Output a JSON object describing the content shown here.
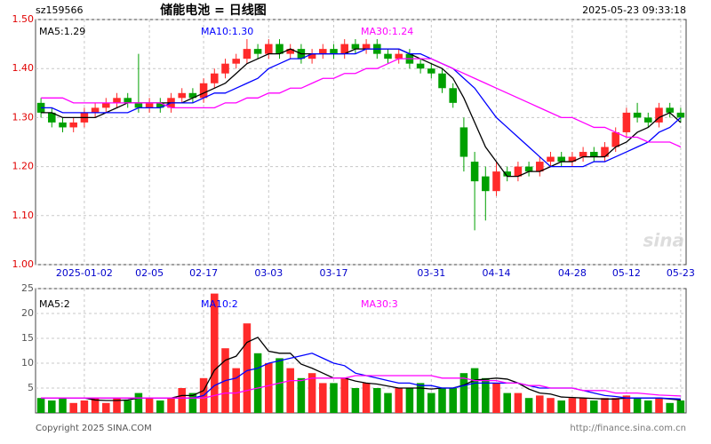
{
  "chart_data": {
    "type": "candlestick",
    "code": "sz159566",
    "title": "储能电池 = 日线图",
    "time": "2025-05-23 09:33:18",
    "categories": [
      null,
      null,
      null,
      null,
      "2025-01-02",
      null,
      null,
      null,
      null,
      null,
      "02-05",
      null,
      null,
      null,
      null,
      "02-17",
      null,
      null,
      null,
      null,
      null,
      "03-03",
      null,
      null,
      null,
      null,
      null,
      "03-17",
      null,
      null,
      null,
      null,
      null,
      null,
      null,
      null,
      "03-31",
      null,
      null,
      null,
      null,
      null,
      "04-14",
      null,
      null,
      null,
      null,
      null,
      null,
      "04-28",
      null,
      null,
      null,
      null,
      "05-12",
      null,
      null,
      null,
      null,
      "05-23"
    ],
    "open": [
      1.33,
      1.31,
      1.29,
      1.28,
      1.29,
      1.31,
      1.32,
      1.33,
      1.34,
      1.33,
      1.32,
      1.33,
      1.32,
      1.34,
      1.35,
      1.34,
      1.37,
      1.39,
      1.41,
      1.42,
      1.44,
      1.43,
      1.45,
      1.43,
      1.44,
      1.42,
      1.43,
      1.44,
      1.43,
      1.45,
      1.44,
      1.45,
      1.43,
      1.42,
      1.43,
      1.41,
      1.4,
      1.39,
      1.36,
      1.28,
      1.21,
      1.18,
      1.15,
      1.19,
      1.18,
      1.2,
      1.19,
      1.21,
      1.22,
      1.21,
      1.22,
      1.23,
      1.22,
      1.24,
      1.27,
      1.31,
      1.3,
      1.29,
      1.32,
      1.31
    ],
    "high": [
      1.34,
      1.32,
      1.3,
      1.3,
      1.32,
      1.33,
      1.34,
      1.35,
      1.35,
      1.43,
      1.34,
      1.34,
      1.35,
      1.36,
      1.36,
      1.38,
      1.4,
      1.42,
      1.43,
      1.46,
      1.45,
      1.46,
      1.46,
      1.45,
      1.45,
      1.44,
      1.45,
      1.45,
      1.46,
      1.46,
      1.46,
      1.46,
      1.44,
      1.44,
      1.44,
      1.42,
      1.41,
      1.4,
      1.37,
      1.3,
      1.23,
      1.2,
      1.21,
      1.2,
      1.21,
      1.21,
      1.22,
      1.23,
      1.23,
      1.23,
      1.24,
      1.24,
      1.25,
      1.28,
      1.32,
      1.33,
      1.31,
      1.33,
      1.33,
      1.32
    ],
    "low": [
      1.3,
      1.28,
      1.27,
      1.27,
      1.28,
      1.3,
      1.31,
      1.32,
      1.32,
      1.31,
      1.31,
      1.31,
      1.31,
      1.33,
      1.33,
      1.33,
      1.36,
      1.38,
      1.4,
      1.41,
      1.42,
      1.42,
      1.42,
      1.42,
      1.41,
      1.41,
      1.42,
      1.42,
      1.42,
      1.43,
      1.43,
      1.42,
      1.41,
      1.41,
      1.4,
      1.39,
      1.38,
      1.35,
      1.32,
      1.19,
      1.07,
      1.09,
      1.14,
      1.17,
      1.17,
      1.18,
      1.18,
      1.2,
      1.2,
      1.2,
      1.21,
      1.21,
      1.21,
      1.23,
      1.26,
      1.29,
      1.28,
      1.28,
      1.3,
      1.29
    ],
    "close": [
      1.31,
      1.29,
      1.28,
      1.29,
      1.31,
      1.32,
      1.33,
      1.34,
      1.33,
      1.32,
      1.33,
      1.32,
      1.34,
      1.35,
      1.34,
      1.37,
      1.39,
      1.41,
      1.42,
      1.44,
      1.43,
      1.45,
      1.43,
      1.44,
      1.42,
      1.43,
      1.44,
      1.43,
      1.45,
      1.44,
      1.45,
      1.43,
      1.42,
      1.43,
      1.41,
      1.4,
      1.39,
      1.36,
      1.33,
      1.22,
      1.17,
      1.15,
      1.19,
      1.18,
      1.2,
      1.19,
      1.21,
      1.22,
      1.21,
      1.22,
      1.23,
      1.22,
      1.24,
      1.27,
      1.31,
      1.3,
      1.29,
      1.32,
      1.31,
      1.3
    ],
    "ma": [
      {
        "name": "MA5:1.29",
        "color": "#000000",
        "values": [
          1.31,
          1.31,
          1.3,
          1.3,
          1.3,
          1.3,
          1.31,
          1.32,
          1.33,
          1.33,
          1.33,
          1.33,
          1.33,
          1.33,
          1.34,
          1.35,
          1.36,
          1.37,
          1.39,
          1.41,
          1.42,
          1.43,
          1.43,
          1.44,
          1.43,
          1.43,
          1.43,
          1.43,
          1.43,
          1.44,
          1.44,
          1.44,
          1.44,
          1.44,
          1.43,
          1.42,
          1.41,
          1.4,
          1.38,
          1.34,
          1.29,
          1.24,
          1.21,
          1.18,
          1.18,
          1.19,
          1.19,
          1.2,
          1.21,
          1.21,
          1.22,
          1.22,
          1.22,
          1.24,
          1.25,
          1.27,
          1.28,
          1.3,
          1.31,
          1.29
        ]
      },
      {
        "name": "MA10:1.30",
        "color": "#0000ff",
        "values": [
          1.32,
          1.32,
          1.31,
          1.31,
          1.31,
          1.31,
          1.31,
          1.31,
          1.31,
          1.32,
          1.32,
          1.32,
          1.33,
          1.33,
          1.33,
          1.34,
          1.35,
          1.35,
          1.36,
          1.37,
          1.38,
          1.4,
          1.41,
          1.42,
          1.42,
          1.43,
          1.43,
          1.43,
          1.43,
          1.43,
          1.44,
          1.44,
          1.44,
          1.44,
          1.43,
          1.43,
          1.42,
          1.41,
          1.4,
          1.38,
          1.36,
          1.33,
          1.3,
          1.28,
          1.26,
          1.24,
          1.22,
          1.2,
          1.2,
          1.2,
          1.2,
          1.21,
          1.21,
          1.22,
          1.23,
          1.24,
          1.25,
          1.27,
          1.28,
          1.3
        ]
      },
      {
        "name": "MA30:1.24",
        "color": "#ff00ff",
        "values": [
          1.34,
          1.34,
          1.34,
          1.33,
          1.33,
          1.33,
          1.33,
          1.33,
          1.33,
          1.33,
          1.33,
          1.33,
          1.32,
          1.32,
          1.32,
          1.32,
          1.32,
          1.33,
          1.33,
          1.34,
          1.34,
          1.35,
          1.35,
          1.36,
          1.36,
          1.37,
          1.38,
          1.38,
          1.39,
          1.39,
          1.4,
          1.4,
          1.41,
          1.42,
          1.42,
          1.42,
          1.42,
          1.41,
          1.4,
          1.39,
          1.38,
          1.37,
          1.36,
          1.35,
          1.34,
          1.33,
          1.32,
          1.31,
          1.3,
          1.3,
          1.29,
          1.28,
          1.28,
          1.27,
          1.26,
          1.26,
          1.25,
          1.25,
          1.25,
          1.24
        ]
      }
    ],
    "ylim": [
      1.0,
      1.5
    ],
    "yticks": [
      {
        "value": 1.5,
        "label": "1.50"
      },
      {
        "value": 1.4,
        "label": "1.40"
      },
      {
        "value": 1.3,
        "label": "1.30"
      },
      {
        "value": 1.2,
        "label": "1.20"
      },
      {
        "value": 1.1,
        "label": "1.10"
      },
      {
        "value": 1.0,
        "label": "1.00"
      }
    ],
    "up_color": "#ff2a2a",
    "down_color": "#00a000",
    "grid": true,
    "volume": {
      "values": [
        3,
        2.5,
        3,
        2,
        2.5,
        3,
        2,
        3,
        2.5,
        4,
        3,
        2.5,
        3,
        5,
        4,
        7,
        24,
        13,
        9,
        18,
        12,
        10,
        11,
        9,
        7,
        8,
        6,
        6,
        7,
        5,
        6,
        5,
        4,
        5,
        5,
        6,
        4,
        5,
        5,
        8,
        9,
        7,
        6,
        4,
        4,
        3,
        3.5,
        3,
        2.5,
        3,
        3,
        2.5,
        3,
        3,
        3.5,
        3,
        2.5,
        3,
        2,
        2.5
      ],
      "ma": [
        {
          "name": "MA5:2",
          "color": "#000000",
          "values": [
            3,
            3,
            3,
            3,
            3,
            2.6,
            2.5,
            2.5,
            2.6,
            3,
            3,
            3,
            3,
            3.5,
            3.5,
            4.5,
            8.6,
            10.6,
            11.4,
            14.2,
            15.2,
            12.4,
            12,
            12,
            9.8,
            9,
            8,
            7,
            7,
            6.4,
            6,
            5.8,
            5.4,
            5,
            5,
            5,
            4.8,
            5,
            5,
            5.6,
            6.6,
            6.8,
            7,
            6.8,
            6,
            4.8,
            4,
            3.8,
            3.2,
            3.1,
            3,
            2.9,
            2.8,
            2.8,
            3,
            3,
            3,
            3,
            2.8,
            2.6
          ]
        },
        {
          "name": "MA10:2",
          "color": "#0000ff",
          "values": [
            3,
            3,
            3,
            3,
            3,
            3,
            3,
            3,
            3,
            3,
            3,
            3,
            3,
            3,
            3,
            3.5,
            5.5,
            6.5,
            7,
            8.5,
            9,
            10,
            10.5,
            11,
            11.5,
            12,
            11,
            10,
            9.5,
            8,
            7.5,
            7,
            6.5,
            6,
            6,
            5.5,
            5.5,
            5,
            5,
            5.5,
            6,
            6,
            6,
            6,
            6,
            5.5,
            5,
            5,
            5,
            5,
            4.5,
            4,
            3.5,
            3.3,
            3,
            3,
            3,
            3,
            2.9,
            2.8
          ]
        },
        {
          "name": "MA30:3",
          "color": "#ff00ff",
          "values": [
            3,
            3,
            3,
            3,
            3,
            3,
            3,
            3,
            3,
            3,
            3,
            3,
            3,
            3,
            3,
            3,
            3.5,
            4,
            4,
            4.5,
            5,
            5.5,
            6,
            6.5,
            6.5,
            7,
            7,
            7,
            7,
            7.5,
            7.5,
            7.5,
            7.5,
            7.5,
            7.5,
            7.5,
            7.5,
            7,
            7,
            7,
            6.5,
            6.5,
            6.5,
            6,
            6,
            5.5,
            5.5,
            5,
            5,
            5,
            4.5,
            4.5,
            4.5,
            4,
            4,
            4,
            3.8,
            3.6,
            3.5,
            3.4
          ]
        }
      ],
      "ylim": [
        0,
        25
      ],
      "yticks": [
        25,
        20,
        15,
        10,
        5
      ]
    },
    "copyright": "Copyright 2025 SINA.COM",
    "watermark": "http://finance.sina.com.cn",
    "logo": "sina"
  }
}
